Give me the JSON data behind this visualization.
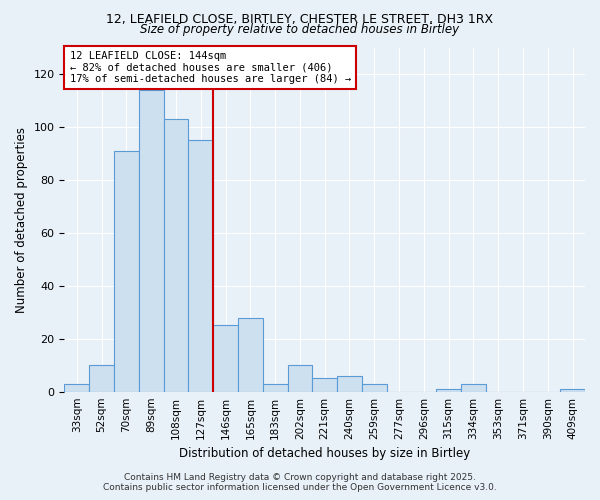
{
  "title_line1": "12, LEAFIELD CLOSE, BIRTLEY, CHESTER LE STREET, DH3 1RX",
  "title_line2": "Size of property relative to detached houses in Birtley",
  "xlabel": "Distribution of detached houses by size in Birtley",
  "ylabel": "Number of detached properties",
  "annotation_line1": "12 LEAFIELD CLOSE: 144sqm",
  "annotation_line2": "← 82% of detached houses are smaller (406)",
  "annotation_line3": "17% of semi-detached houses are larger (84) →",
  "bar_categories": [
    "33sqm",
    "52sqm",
    "70sqm",
    "89sqm",
    "108sqm",
    "127sqm",
    "146sqm",
    "165sqm",
    "183sqm",
    "202sqm",
    "221sqm",
    "240sqm",
    "259sqm",
    "277sqm",
    "296sqm",
    "315sqm",
    "334sqm",
    "353sqm",
    "371sqm",
    "390sqm",
    "409sqm"
  ],
  "bar_values": [
    3,
    10,
    91,
    114,
    103,
    95,
    25,
    28,
    3,
    10,
    5,
    6,
    3,
    0,
    0,
    1,
    3,
    0,
    0,
    0,
    1
  ],
  "bar_color": "#cde0f0",
  "bar_edge_color": "#5b9bd5",
  "vline_color": "#cc0000",
  "background_color": "#e8f0f8",
  "grid_color": "#ffffff",
  "ylim": [
    0,
    130
  ],
  "yticks": [
    0,
    20,
    40,
    60,
    80,
    100,
    120
  ],
  "footer_line1": "Contains HM Land Registry data © Crown copyright and database right 2025.",
  "footer_line2": "Contains public sector information licensed under the Open Government Licence v3.0.",
  "annotation_box_facecolor": "#ffffff",
  "annotation_box_edgecolor": "#cc0000",
  "vline_x_index": 6
}
